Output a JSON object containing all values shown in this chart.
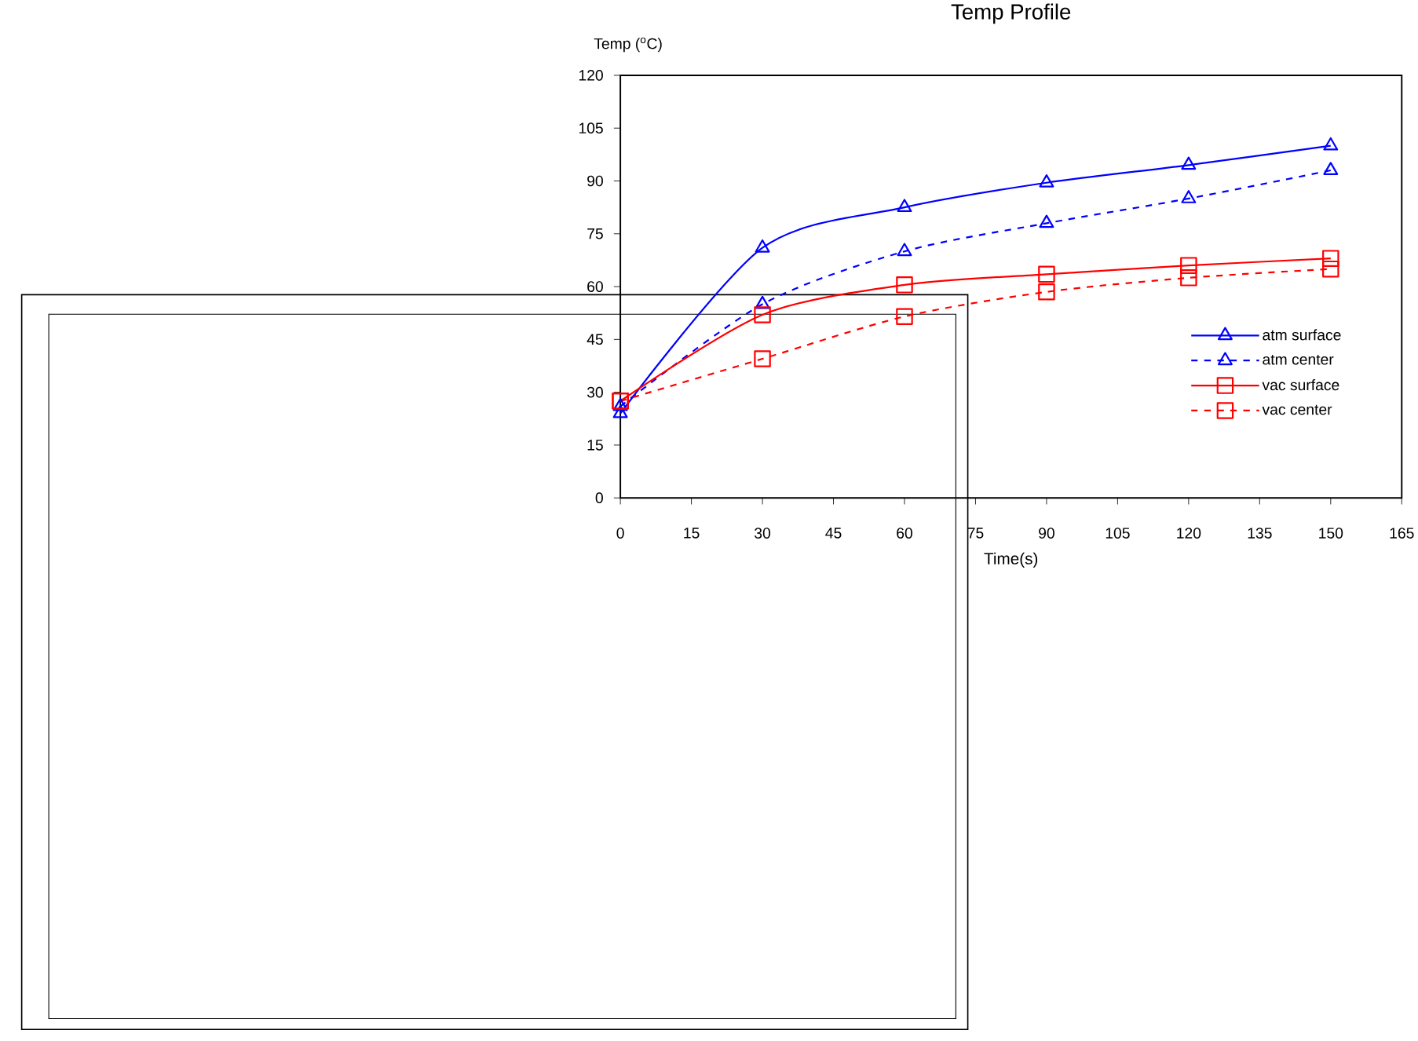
{
  "chart_data": {
    "type": "line",
    "title": "Temp Profile",
    "xlabel": "Time(s)",
    "ylabel": "Temp ($^{o}$C)",
    "x": [
      0,
      30,
      60,
      90,
      120,
      150
    ],
    "series": [
      {
        "name": "atm surface",
        "color": "#0000ff",
        "marker": "triangle",
        "line_style": "solid",
        "values": [
          24,
          71,
          82.5,
          89.5,
          94.5,
          100
        ]
      },
      {
        "name": "atm center",
        "color": "#0000ff",
        "marker": "triangle",
        "line_style": "dashed",
        "values": [
          26,
          55,
          70,
          78,
          85,
          93
        ]
      },
      {
        "name": "vac surface",
        "color": "#ff0000",
        "marker": "square",
        "line_style": "solid",
        "values": [
          27.5,
          52,
          60.5,
          63.5,
          66,
          68
        ]
      },
      {
        "name": "vac center",
        "color": "#ff0000",
        "marker": "square",
        "line_style": "dashed",
        "values": [
          27.5,
          39.5,
          51.5,
          58.5,
          62.5,
          65
        ]
      }
    ],
    "xlim": [
      0,
      165
    ],
    "xticks": [
      0,
      15,
      30,
      45,
      60,
      75,
      90,
      105,
      120,
      135,
      150,
      165
    ],
    "ylim": [
      0,
      120
    ],
    "yticks": [
      0,
      15,
      30,
      45,
      60,
      75,
      90,
      105,
      120
    ],
    "grid": false,
    "legend": "right"
  }
}
